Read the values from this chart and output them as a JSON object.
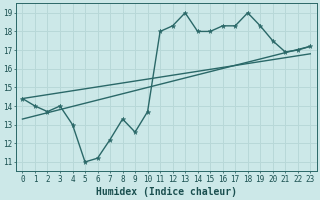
{
  "xlabel": "Humidex (Indice chaleur)",
  "bg_color": "#cce8e8",
  "grid_color": "#b8d8d8",
  "line_color": "#2a6868",
  "xlim": [
    -0.5,
    23.5
  ],
  "ylim": [
    10.5,
    19.5
  ],
  "xticks": [
    0,
    1,
    2,
    3,
    4,
    5,
    6,
    7,
    8,
    9,
    10,
    11,
    12,
    13,
    14,
    15,
    16,
    17,
    18,
    19,
    20,
    21,
    22,
    23
  ],
  "yticks": [
    11,
    12,
    13,
    14,
    15,
    16,
    17,
    18,
    19
  ],
  "scatter_x": [
    0,
    1,
    2,
    3,
    4,
    5,
    6,
    7,
    8,
    9,
    10,
    11,
    12,
    13,
    14,
    15,
    16,
    17,
    18,
    19,
    20,
    21,
    22,
    23
  ],
  "scatter_y": [
    14.4,
    14.0,
    13.7,
    14.0,
    13.0,
    11.0,
    11.2,
    12.2,
    13.3,
    12.6,
    13.7,
    18.0,
    18.3,
    19.0,
    18.0,
    18.0,
    18.3,
    18.3,
    19.0,
    18.3,
    17.5,
    16.9,
    17.0,
    17.2
  ],
  "trend1_x": [
    0,
    23
  ],
  "trend1_y": [
    13.3,
    17.2
  ],
  "trend2_x": [
    0,
    23
  ],
  "trend2_y": [
    14.4,
    16.8
  ],
  "marker_size": 3.5,
  "line_width": 1.0,
  "tick_fontsize": 5.5,
  "xlabel_fontsize": 7.0
}
